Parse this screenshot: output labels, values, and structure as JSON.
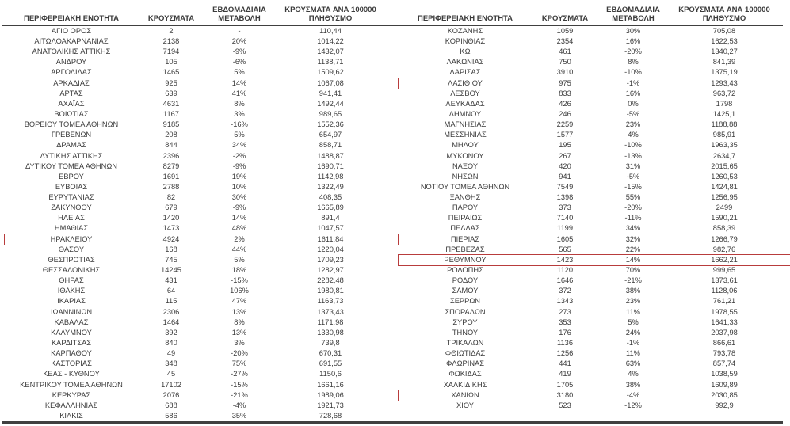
{
  "title": "Regional unit COVID-19 cases table (Greece)",
  "colors": {
    "text": "#3b3b3b",
    "rule": "#404040",
    "highlight_border": "#b83c3c"
  },
  "columns": [
    "ΠΕΡΙΦΕΡΕΙΑΚΗ ΕΝΟΤΗΤΑ",
    "ΚΡΟΥΣΜΑΤΑ",
    "ΕΒΔΟΜΑΔΙΑΙΑ ΜΕΤΑΒΟΛΗ",
    "ΚΡΟΥΣΜΑΤΑ ΑΝΑ 100000 ΠΛΗΘΥΣΜΟ"
  ],
  "highlighted_regions": [
    "ΗΡΑΚΛΕΙΟΥ",
    "ΛΑΣΙΘΙΟΥ",
    "ΡΕΘΥΜΝΟΥ",
    "ΧΑΝΙΩΝ"
  ],
  "left_rows": [
    [
      "ΑΓΙΟ ΟΡΟΣ",
      "2",
      "-",
      "110,44",
      0
    ],
    [
      "ΑΙΤΩΛΟΑΚΑΡΝΑΝΙΑΣ",
      "2138",
      "20%",
      "1014,22",
      0
    ],
    [
      "ΑΝΑΤΟΛΙΚΗΣ ΑΤΤΙΚΗΣ",
      "7194",
      "-9%",
      "1432,07",
      0
    ],
    [
      "ΑΝΔΡΟΥ",
      "105",
      "-6%",
      "1138,71",
      0
    ],
    [
      "ΑΡΓΟΛΙΔΑΣ",
      "1465",
      "5%",
      "1509,62",
      0
    ],
    [
      "ΑΡΚΑΔΙΑΣ",
      "925",
      "14%",
      "1067,08",
      0
    ],
    [
      "ΑΡΤΑΣ",
      "639",
      "41%",
      "941,41",
      0
    ],
    [
      "ΑΧΑΪΑΣ",
      "4631",
      "8%",
      "1492,44",
      0
    ],
    [
      "ΒΟΙΩΤΙΑΣ",
      "1167",
      "3%",
      "989,65",
      0
    ],
    [
      "ΒΟΡΕΙΟΥ ΤΟΜΕΑ ΑΘΗΝΩΝ",
      "9185",
      "-16%",
      "1552,36",
      0
    ],
    [
      "ΓΡΕΒΕΝΩΝ",
      "208",
      "5%",
      "654,97",
      0
    ],
    [
      "ΔΡΑΜΑΣ",
      "844",
      "34%",
      "858,71",
      0
    ],
    [
      "ΔΥΤΙΚΗΣ ΑΤΤΙΚΗΣ",
      "2396",
      "-2%",
      "1488,87",
      0
    ],
    [
      "ΔΥΤΙΚΟΥ ΤΟΜΕΑ ΑΘΗΝΩΝ",
      "8279",
      "-9%",
      "1690,71",
      0
    ],
    [
      "ΕΒΡΟΥ",
      "1691",
      "19%",
      "1142,98",
      0
    ],
    [
      "ΕΥΒΟΙΑΣ",
      "2788",
      "10%",
      "1322,49",
      0
    ],
    [
      "ΕΥΡΥΤΑΝΙΑΣ",
      "82",
      "30%",
      "408,35",
      0
    ],
    [
      "ΖΑΚΥΝΘΟΥ",
      "679",
      "-9%",
      "1665,89",
      0
    ],
    [
      "ΗΛΕΙΑΣ",
      "1420",
      "14%",
      "891,4",
      0
    ],
    [
      "ΗΜΑΘΙΑΣ",
      "1473",
      "48%",
      "1047,57",
      0
    ],
    [
      "ΗΡΑΚΛΕΙΟΥ",
      "4924",
      "2%",
      "1611,84",
      1
    ],
    [
      "ΘΑΣΟΥ",
      "168",
      "44%",
      "1220,04",
      0
    ],
    [
      "ΘΕΣΠΡΩΤΙΑΣ",
      "745",
      "5%",
      "1709,23",
      0
    ],
    [
      "ΘΕΣΣΑΛΟΝΙΚΗΣ",
      "14245",
      "18%",
      "1282,97",
      0
    ],
    [
      "ΘΗΡΑΣ",
      "431",
      "-15%",
      "2282,48",
      0
    ],
    [
      "ΙΘΑΚΗΣ",
      "64",
      "106%",
      "1980,81",
      0
    ],
    [
      "ΙΚΑΡΙΑΣ",
      "115",
      "47%",
      "1163,73",
      0
    ],
    [
      "ΙΩΑΝΝΙΝΩΝ",
      "2306",
      "13%",
      "1373,43",
      0
    ],
    [
      "ΚΑΒΑΛΑΣ",
      "1464",
      "8%",
      "1171,98",
      0
    ],
    [
      "ΚΑΛΥΜΝΟΥ",
      "392",
      "13%",
      "1330,98",
      0
    ],
    [
      "ΚΑΡΔΙΤΣΑΣ",
      "840",
      "3%",
      "739,8",
      0
    ],
    [
      "ΚΑΡΠΑΘΟΥ",
      "49",
      "-20%",
      "670,31",
      0
    ],
    [
      "ΚΑΣΤΟΡΙΑΣ",
      "348",
      "75%",
      "691,55",
      0
    ],
    [
      "ΚΕΑΣ - ΚΥΘΝΟΥ",
      "45",
      "-27%",
      "1150,6",
      0
    ],
    [
      "ΚΕΝΤΡΙΚΟΥ ΤΟΜΕΑ ΑΘΗΝΩΝ",
      "17102",
      "-15%",
      "1661,16",
      0
    ],
    [
      "ΚΕΡΚΥΡΑΣ",
      "2076",
      "-21%",
      "1989,06",
      0
    ],
    [
      "ΚΕΦΑΛΛΗΝΙΑΣ",
      "688",
      "-4%",
      "1921,73",
      0
    ],
    [
      "ΚΙΛΚΙΣ",
      "586",
      "35%",
      "728,68",
      0
    ]
  ],
  "right_rows": [
    [
      "ΚΟΖΑΝΗΣ",
      "1059",
      "30%",
      "705,08",
      0
    ],
    [
      "ΚΟΡΙΝΘΙΑΣ",
      "2354",
      "16%",
      "1622,53",
      0
    ],
    [
      "ΚΩ",
      "461",
      "-20%",
      "1340,27",
      0
    ],
    [
      "ΛΑΚΩΝΙΑΣ",
      "750",
      "8%",
      "841,39",
      0
    ],
    [
      "ΛΑΡΙΣΑΣ",
      "3910",
      "-10%",
      "1375,19",
      0
    ],
    [
      "ΛΑΣΙΘΙΟΥ",
      "975",
      "-1%",
      "1293,43",
      1
    ],
    [
      "ΛΕΣΒΟΥ",
      "833",
      "16%",
      "963,72",
      0
    ],
    [
      "ΛΕΥΚΑΔΑΣ",
      "426",
      "0%",
      "1798",
      0
    ],
    [
      "ΛΗΜΝΟΥ",
      "246",
      "-5%",
      "1425,1",
      0
    ],
    [
      "ΜΑΓΝΗΣΙΑΣ",
      "2259",
      "23%",
      "1188,88",
      0
    ],
    [
      "ΜΕΣΣΗΝΙΑΣ",
      "1577",
      "4%",
      "985,91",
      0
    ],
    [
      "ΜΗΛΟΥ",
      "195",
      "-10%",
      "1963,35",
      0
    ],
    [
      "ΜΥΚΟΝΟΥ",
      "267",
      "-13%",
      "2634,7",
      0
    ],
    [
      "ΝΑΞΟΥ",
      "420",
      "31%",
      "2015,65",
      0
    ],
    [
      "ΝΗΣΩΝ",
      "941",
      "-5%",
      "1260,53",
      0
    ],
    [
      "ΝΟΤΙΟΥ ΤΟΜΕΑ ΑΘΗΝΩΝ",
      "7549",
      "-15%",
      "1424,81",
      0
    ],
    [
      "ΞΑΝΘΗΣ",
      "1398",
      "55%",
      "1256,95",
      0
    ],
    [
      "ΠΑΡΟΥ",
      "373",
      "-20%",
      "2499",
      0
    ],
    [
      "ΠΕΙΡΑΙΩΣ",
      "7140",
      "-11%",
      "1590,21",
      0
    ],
    [
      "ΠΕΛΛΑΣ",
      "1199",
      "34%",
      "858,39",
      0
    ],
    [
      "ΠΙΕΡΙΑΣ",
      "1605",
      "32%",
      "1266,79",
      0
    ],
    [
      "ΠΡΕΒΕΖΑΣ",
      "565",
      "22%",
      "982,76",
      0
    ],
    [
      "ΡΕΘΥΜΝΟΥ",
      "1423",
      "14%",
      "1662,21",
      1
    ],
    [
      "ΡΟΔΟΠΗΣ",
      "1120",
      "70%",
      "999,65",
      0
    ],
    [
      "ΡΟΔΟΥ",
      "1646",
      "-21%",
      "1373,61",
      0
    ],
    [
      "ΣΑΜΟΥ",
      "372",
      "38%",
      "1128,06",
      0
    ],
    [
      "ΣΕΡΡΩΝ",
      "1343",
      "23%",
      "761,21",
      0
    ],
    [
      "ΣΠΟΡΑΔΩΝ",
      "273",
      "11%",
      "1978,55",
      0
    ],
    [
      "ΣΥΡΟΥ",
      "353",
      "5%",
      "1641,33",
      0
    ],
    [
      "ΤΗΝΟΥ",
      "176",
      "24%",
      "2037,98",
      0
    ],
    [
      "ΤΡΙΚΑΛΩΝ",
      "1136",
      "-1%",
      "866,61",
      0
    ],
    [
      "ΦΘΙΩΤΙΔΑΣ",
      "1256",
      "11%",
      "793,78",
      0
    ],
    [
      "ΦΛΩΡΙΝΑΣ",
      "441",
      "63%",
      "857,74",
      0
    ],
    [
      "ΦΩΚΙΔΑΣ",
      "419",
      "4%",
      "1038,59",
      0
    ],
    [
      "ΧΑΛΚΙΔΙΚΗΣ",
      "1705",
      "38%",
      "1609,89",
      0
    ],
    [
      "ΧΑΝΙΩΝ",
      "3180",
      "-4%",
      "2030,85",
      1
    ],
    [
      "ΧΙΟΥ",
      "523",
      "-12%",
      "992,9",
      0
    ]
  ]
}
